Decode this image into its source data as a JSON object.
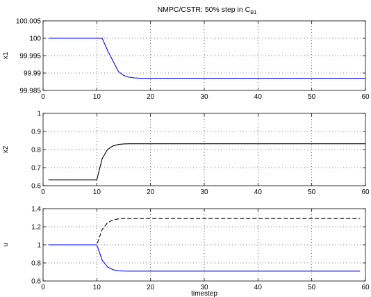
{
  "figure": {
    "title": "NMPC/CSTR: 50% step in C",
    "title_subscript": "B1"
  },
  "chart_data": [
    {
      "type": "line",
      "ylabel": "x1",
      "xlabel": "",
      "xlim": [
        0,
        60
      ],
      "ylim": [
        99.985,
        100.005
      ],
      "xticks": [
        0,
        10,
        20,
        30,
        40,
        50,
        60
      ],
      "xtick_labels": [
        "0",
        "10",
        "20",
        "30",
        "40",
        "50",
        "60"
      ],
      "yticks": [
        99.985,
        99.99,
        99.995,
        100,
        100.005
      ],
      "ytick_labels": [
        "99.985",
        "99.99",
        "99.995",
        "100",
        "100.005"
      ],
      "grid": true,
      "series": [
        {
          "color": "#0000ff",
          "dash": "solid",
          "x": [
            1,
            2,
            3,
            4,
            5,
            6,
            7,
            8,
            9,
            10,
            11,
            12,
            13,
            14,
            15,
            16,
            17,
            18,
            19,
            20,
            25,
            30,
            35,
            40,
            45,
            50,
            55,
            60
          ],
          "y": [
            100,
            100,
            100,
            100,
            100,
            100,
            100,
            100,
            100,
            100,
            100,
            99.9965,
            99.9935,
            99.9905,
            99.9893,
            99.9888,
            99.9886,
            99.9885,
            99.9885,
            99.9885,
            99.9885,
            99.9885,
            99.9885,
            99.9885,
            99.9885,
            99.9885,
            99.9885,
            99.9885
          ]
        }
      ]
    },
    {
      "type": "line",
      "ylabel": "x2",
      "xlabel": "",
      "xlim": [
        0,
        60
      ],
      "ylim": [
        0.6,
        1
      ],
      "xticks": [
        0,
        10,
        20,
        30,
        40,
        50,
        60
      ],
      "xtick_labels": [
        "0",
        "10",
        "20",
        "30",
        "40",
        "50",
        "60"
      ],
      "yticks": [
        0.6,
        0.7,
        0.8,
        0.9,
        1
      ],
      "ytick_labels": [
        "0.6",
        "0.7",
        "0.8",
        "0.9",
        "1"
      ],
      "grid": true,
      "series": [
        {
          "color": "#000000",
          "dash": "solid",
          "x": [
            1,
            2,
            3,
            4,
            5,
            6,
            7,
            8,
            9,
            10,
            11,
            12,
            13,
            14,
            15,
            16,
            17,
            18,
            19,
            20,
            25,
            30,
            35,
            40,
            45,
            50,
            55,
            60
          ],
          "y": [
            0.632,
            0.632,
            0.632,
            0.632,
            0.632,
            0.632,
            0.632,
            0.632,
            0.632,
            0.632,
            0.75,
            0.8,
            0.82,
            0.828,
            0.831,
            0.832,
            0.832,
            0.832,
            0.832,
            0.832,
            0.832,
            0.832,
            0.832,
            0.832,
            0.832,
            0.832,
            0.832,
            0.832
          ]
        }
      ]
    },
    {
      "type": "line",
      "ylabel": "u",
      "xlabel": "timestep",
      "xlim": [
        0,
        60
      ],
      "ylim": [
        0.6,
        1.4
      ],
      "xticks": [
        0,
        10,
        20,
        30,
        40,
        50,
        60
      ],
      "xtick_labels": [
        "0",
        "10",
        "20",
        "30",
        "40",
        "50",
        "60"
      ],
      "yticks": [
        0.6,
        0.8,
        1,
        1.2,
        1.4
      ],
      "ytick_labels": [
        "0.6",
        "0.8",
        "1",
        "1.2",
        "1.4"
      ],
      "grid": true,
      "series": [
        {
          "color": "#000000",
          "dash": "dashed",
          "x": [
            1,
            2,
            3,
            4,
            5,
            6,
            7,
            8,
            9,
            10,
            11,
            12,
            13,
            14,
            15,
            16,
            17,
            18,
            19,
            20,
            25,
            30,
            35,
            40,
            45,
            50,
            55,
            59
          ],
          "y": [
            1,
            1,
            1,
            1,
            1,
            1,
            1,
            1,
            1,
            1,
            1.17,
            1.245,
            1.275,
            1.287,
            1.29,
            1.291,
            1.291,
            1.291,
            1.291,
            1.291,
            1.291,
            1.291,
            1.291,
            1.291,
            1.291,
            1.291,
            1.291,
            1.291
          ]
        },
        {
          "color": "#0000ff",
          "dash": "solid",
          "x": [
            1,
            2,
            3,
            4,
            5,
            6,
            7,
            8,
            9,
            10,
            11,
            12,
            13,
            14,
            15,
            16,
            17,
            18,
            19,
            20,
            25,
            30,
            35,
            40,
            45,
            50,
            55,
            59
          ],
          "y": [
            1,
            1,
            1,
            1,
            1,
            1,
            1,
            1,
            1,
            1,
            0.83,
            0.755,
            0.725,
            0.713,
            0.71,
            0.709,
            0.709,
            0.709,
            0.709,
            0.709,
            0.709,
            0.709,
            0.709,
            0.709,
            0.709,
            0.709,
            0.709,
            0.709
          ]
        }
      ]
    }
  ]
}
